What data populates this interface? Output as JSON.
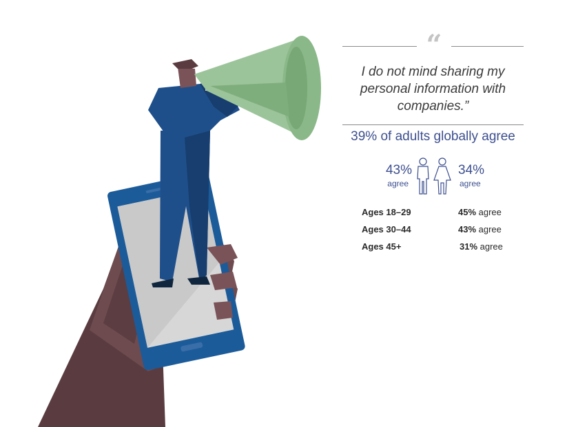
{
  "quote": {
    "mark": "“",
    "text": "I do not mind sharing my personal information with companies.”"
  },
  "headline": "39% of adults globally agree",
  "gender": {
    "male_pct": "43%",
    "male_label": "agree",
    "female_pct": "34%",
    "female_label": "agree"
  },
  "age_groups": [
    {
      "label": "Ages 18–29",
      "pct": "45%",
      "suffix": " agree"
    },
    {
      "label": "Ages 30–44",
      "pct": "43%",
      "suffix": " agree"
    },
    {
      "label": "Ages 45+",
      "pct": "31%",
      "suffix": " agree"
    }
  ],
  "colors": {
    "accent": "#3d4f8f",
    "megaphone": "#9cc49a",
    "suit": "#1f4f8a",
    "hand": "#6e4b4f",
    "phone": "#1c5b99"
  }
}
